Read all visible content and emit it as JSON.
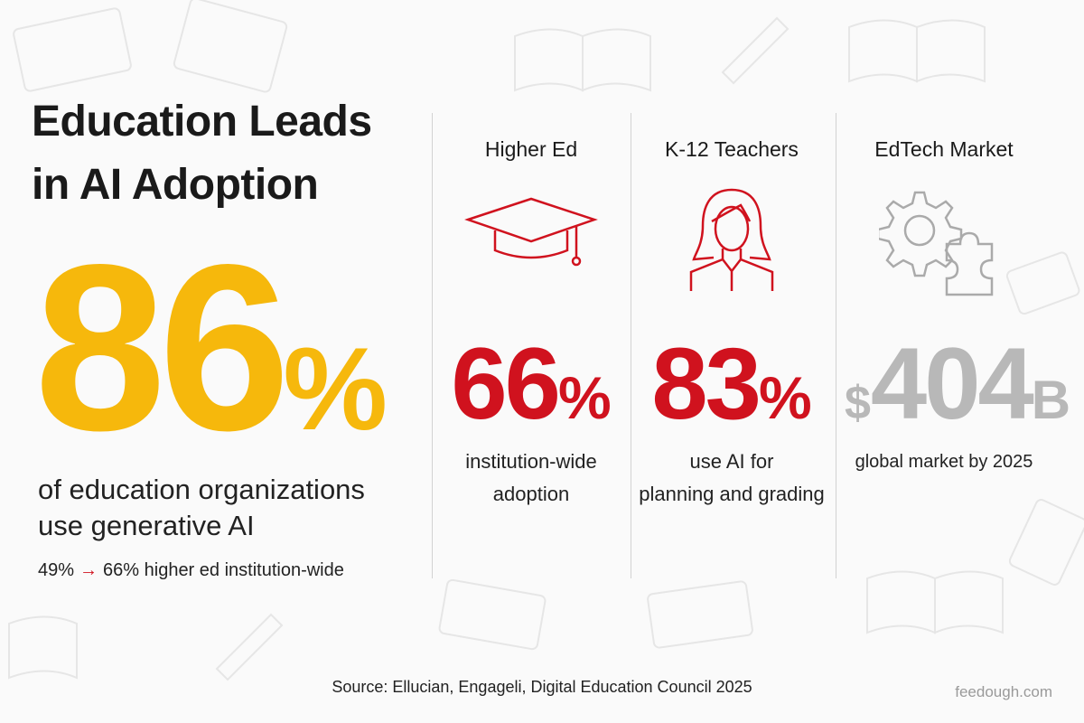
{
  "header": {
    "title_lines": [
      "Education Leads",
      "in AI Adoption"
    ]
  },
  "hero": {
    "value": "86",
    "unit": "%",
    "description_lines": [
      "of education organizations",
      "use generative AI"
    ],
    "trend": {
      "from": "49%",
      "arrow": "→",
      "to": "66%",
      "label": "higher ed institution-wide"
    }
  },
  "columns": [
    {
      "heading": "Higher Ed",
      "value": "66",
      "unit": "%",
      "description_lines": [
        "institution-wide",
        "adoption"
      ]
    },
    {
      "heading": "K-12 Teachers",
      "value": "83",
      "unit": "%",
      "description_lines": [
        "use AI for",
        "planning and grading"
      ]
    },
    {
      "heading": "EdTech Market",
      "prefix": "$",
      "value": "404",
      "unit": "B",
      "description_lines": [
        "global market by 2025"
      ]
    }
  ],
  "footer": {
    "source": "Source: Ellucian, Engageli, Digital Education Council 2025",
    "watermark": "feedough.com"
  }
}
